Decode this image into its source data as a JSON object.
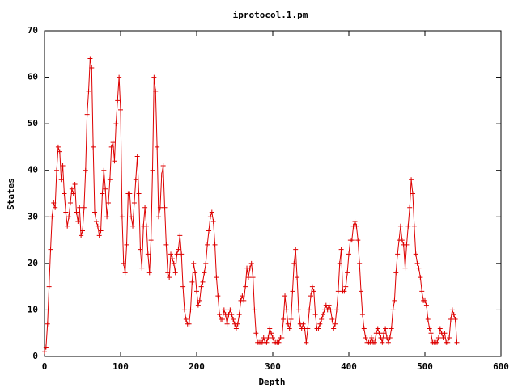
{
  "chart_data": {
    "type": "line",
    "title": "iprotocol.1.pm",
    "x_label": "Depth",
    "y_label": "States",
    "xlim": [
      0,
      600
    ],
    "ylim": [
      0,
      70
    ],
    "xticks": [
      0,
      100,
      200,
      300,
      400,
      500,
      600
    ],
    "yticks": [
      0,
      10,
      20,
      30,
      40,
      50,
      60,
      70
    ],
    "x": [
      0,
      2,
      4,
      6,
      8,
      10,
      12,
      14,
      16,
      18,
      20,
      22,
      24,
      26,
      28,
      30,
      32,
      34,
      36,
      38,
      40,
      42,
      44,
      46,
      48,
      50,
      52,
      54,
      56,
      58,
      60,
      62,
      64,
      66,
      68,
      70,
      72,
      74,
      76,
      78,
      80,
      82,
      84,
      86,
      88,
      90,
      92,
      94,
      96,
      98,
      100,
      102,
      104,
      106,
      108,
      110,
      112,
      114,
      116,
      118,
      120,
      122,
      124,
      126,
      128,
      130,
      132,
      134,
      136,
      138,
      140,
      142,
      144,
      146,
      148,
      150,
      152,
      154,
      156,
      158,
      160,
      162,
      164,
      166,
      168,
      170,
      172,
      174,
      176,
      178,
      180,
      182,
      184,
      186,
      188,
      190,
      192,
      194,
      196,
      198,
      200,
      202,
      204,
      206,
      208,
      210,
      212,
      214,
      216,
      218,
      220,
      222,
      224,
      226,
      228,
      230,
      232,
      234,
      236,
      238,
      240,
      242,
      244,
      246,
      248,
      250,
      252,
      254,
      256,
      258,
      260,
      262,
      264,
      266,
      268,
      270,
      272,
      274,
      276,
      278,
      280,
      282,
      284,
      286,
      288,
      290,
      292,
      294,
      296,
      298,
      300,
      302,
      304,
      306,
      308,
      310,
      312,
      314,
      316,
      318,
      320,
      322,
      324,
      326,
      328,
      330,
      332,
      334,
      336,
      338,
      340,
      342,
      344,
      346,
      348,
      350,
      352,
      354,
      356,
      358,
      360,
      362,
      364,
      366,
      368,
      370,
      372,
      374,
      376,
      378,
      380,
      382,
      384,
      386,
      388,
      390,
      392,
      394,
      396,
      398,
      400,
      402,
      404,
      406,
      408,
      410,
      412,
      414,
      416,
      418,
      420,
      422,
      424,
      426,
      428,
      430,
      432,
      434,
      436,
      438,
      440,
      442,
      444,
      446,
      448,
      450,
      452,
      454,
      456,
      458,
      460,
      462,
      464,
      466,
      468,
      470,
      472,
      474,
      476,
      478,
      480,
      482,
      484,
      486,
      488,
      490,
      492,
      494,
      496,
      498,
      500,
      502,
      504,
      506,
      508,
      510,
      512,
      514,
      516,
      518,
      520,
      522,
      524,
      526,
      528,
      530,
      532,
      534,
      536,
      538,
      540,
      542
    ],
    "series": [
      {
        "color": "#dd0000",
        "values": [
          1,
          2,
          7,
          15,
          23,
          30,
          33,
          32,
          40,
          45,
          44,
          38,
          41,
          35,
          31,
          28,
          30,
          33,
          36,
          35,
          37,
          31,
          29,
          32,
          26,
          27,
          32,
          40,
          52,
          57,
          64,
          62,
          45,
          31,
          29,
          28,
          26,
          27,
          35,
          40,
          36,
          30,
          33,
          38,
          45,
          46,
          42,
          50,
          55,
          60,
          53,
          30,
          20,
          18,
          24,
          35,
          35,
          30,
          28,
          33,
          38,
          43,
          35,
          23,
          19,
          28,
          32,
          28,
          22,
          18,
          25,
          40,
          60,
          57,
          45,
          30,
          32,
          39,
          41,
          32,
          24,
          18,
          17,
          22,
          21,
          20,
          18,
          22,
          23,
          26,
          22,
          15,
          10,
          8,
          7,
          7,
          10,
          16,
          20,
          18,
          14,
          11,
          12,
          15,
          16,
          18,
          20,
          24,
          27,
          30,
          31,
          29,
          24,
          17,
          13,
          9,
          8,
          8,
          10,
          9,
          7,
          9,
          10,
          9,
          8,
          7,
          6,
          7,
          9,
          12,
          13,
          12,
          15,
          19,
          17,
          19,
          20,
          17,
          10,
          5,
          3,
          3,
          3,
          3,
          4,
          3,
          3,
          4,
          6,
          5,
          4,
          3,
          3,
          3,
          3,
          4,
          4,
          8,
          13,
          10,
          7,
          6,
          8,
          14,
          20,
          23,
          17,
          10,
          7,
          6,
          7,
          6,
          3,
          6,
          10,
          13,
          15,
          14,
          9,
          6,
          6,
          7,
          8,
          9,
          10,
          11,
          10,
          11,
          10,
          8,
          6,
          7,
          10,
          14,
          20,
          23,
          14,
          14,
          15,
          18,
          22,
          25,
          25,
          28,
          29,
          28,
          25,
          20,
          14,
          9,
          6,
          4,
          3,
          3,
          3,
          4,
          3,
          3,
          5,
          6,
          5,
          4,
          3,
          5,
          6,
          4,
          3,
          4,
          6,
          10,
          12,
          18,
          22,
          25,
          28,
          25,
          24,
          19,
          24,
          28,
          32,
          38,
          35,
          28,
          22,
          20,
          19,
          17,
          14,
          12,
          12,
          11,
          8,
          6,
          5,
          3,
          3,
          3,
          3,
          4,
          6,
          5,
          4,
          5,
          3,
          3,
          4,
          8,
          10,
          9,
          8,
          3
        ]
      }
    ]
  }
}
